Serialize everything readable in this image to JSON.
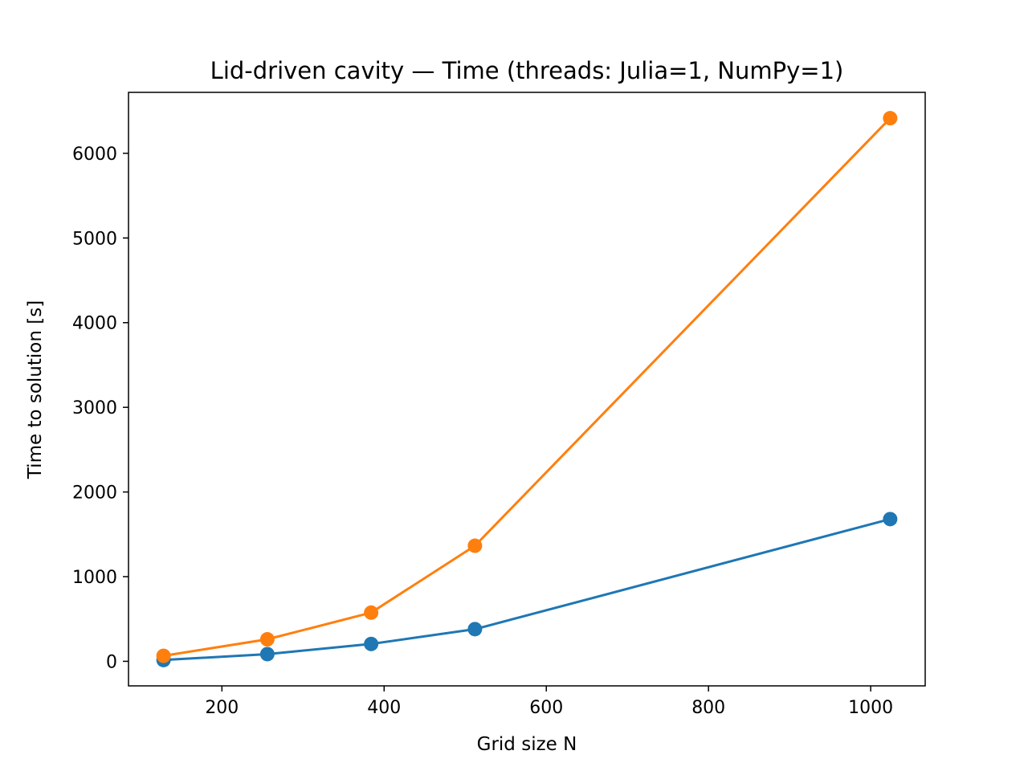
{
  "chart_data": {
    "type": "line",
    "title": "Lid-driven cavity — Time (threads: Julia=1, NumPy=1)",
    "xlabel": "Grid size N",
    "ylabel": "Time to solution [s]",
    "xlim": [
      84.8,
      1067.2
    ],
    "ylim": [
      -290,
      6720
    ],
    "xticks": [
      200,
      400,
      600,
      800,
      1000
    ],
    "yticks": [
      0,
      1000,
      2000,
      3000,
      4000,
      5000,
      6000
    ],
    "grid": false,
    "legend": "none",
    "series": [
      {
        "color": "#1f77b4",
        "x": [
          128,
          256,
          384,
          512,
          1024
        ],
        "y": [
          15,
          85,
          205,
          380,
          1680
        ]
      },
      {
        "color": "#ff7f0e",
        "x": [
          128,
          256,
          384,
          512,
          1024
        ],
        "y": [
          65,
          260,
          575,
          1365,
          6415
        ]
      }
    ]
  }
}
